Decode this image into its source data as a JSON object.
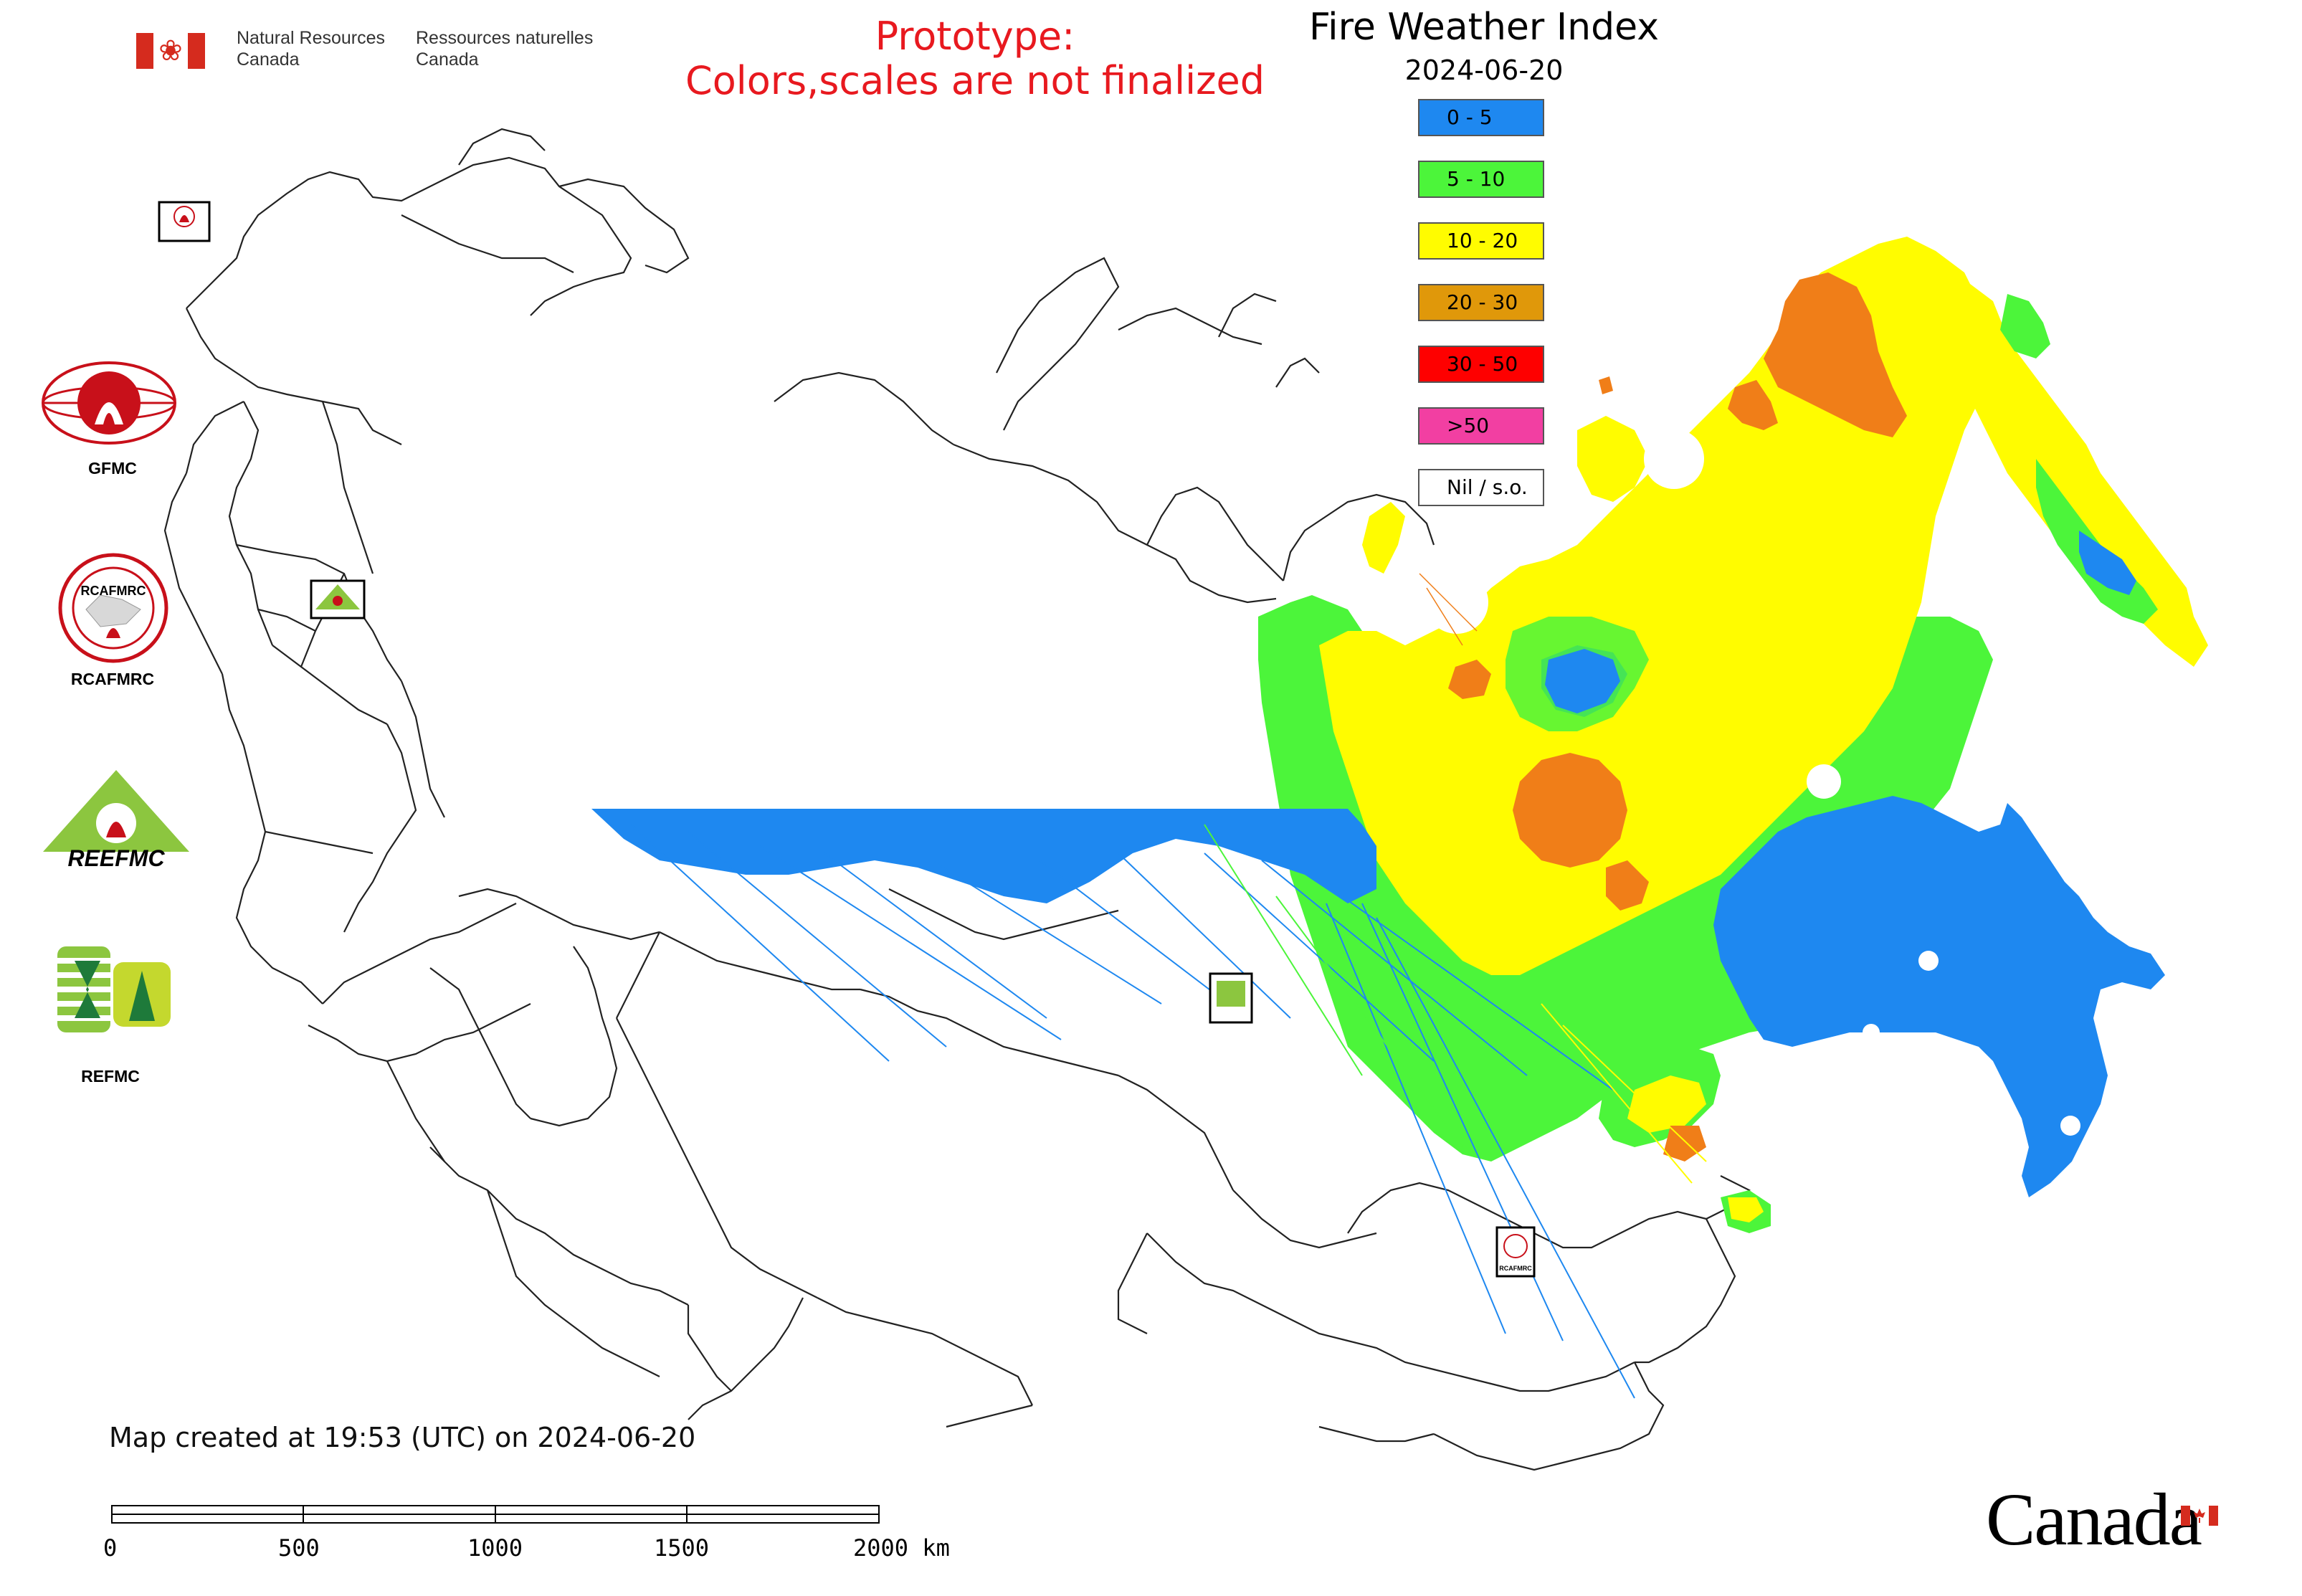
{
  "header": {
    "dept_en_line1": "Natural Resources",
    "dept_en_line2": "Canada",
    "dept_fr_line1": "Ressources naturelles",
    "dept_fr_line2": "Canada",
    "prototype_line1": "Prototype:",
    "prototype_line2": "Colors,scales are not finalized"
  },
  "legend": {
    "title": "Fire Weather Index",
    "date": "2024-06-20",
    "classes": [
      {
        "label": "0 - 5",
        "color": "#1e88f0"
      },
      {
        "label": "5 - 10",
        "color": "#4cf53a"
      },
      {
        "label": "10 - 20",
        "color": "#fffc00"
      },
      {
        "label": "20 - 30",
        "color": "#e0980a"
      },
      {
        "label": "30 - 50",
        "color": "#fe0000"
      },
      {
        "label": ">50",
        "color": "#f23fa2"
      },
      {
        "label": "Nil / s.o.",
        "color": "#ffffff"
      }
    ]
  },
  "logos": {
    "gfmc": "GFMC",
    "rcafmrc": "RCAFMRC",
    "reefmc": "REEFMC",
    "reefmc_mark": "REEFMC",
    "rcafmrc_mark": "RCAFMRC",
    "refmc": "REFMC"
  },
  "footer": {
    "created": "Map created at 19:53 (UTC) on 2024-06-20"
  },
  "scale_bar": {
    "ticks": [
      "0",
      "500",
      "1000",
      "1500",
      "2000 km"
    ]
  },
  "wordmark": "Canada",
  "colors": {
    "prototype_red": "#e8191f",
    "border_gray": "#222222",
    "canada_red": "#d52b1e"
  }
}
